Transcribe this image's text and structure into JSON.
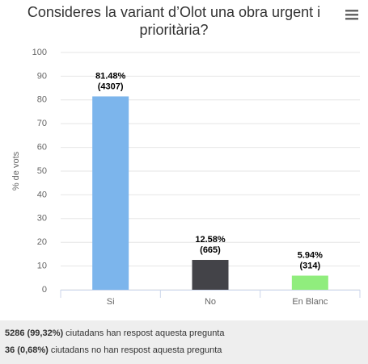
{
  "chart_data": {
    "type": "bar",
    "title": "Consideres la variant d’Olot una obra urgent i prioritària?",
    "y_label": "% de vots",
    "categories": [
      "Si",
      "No",
      "En Blanc"
    ],
    "values": [
      81.48,
      12.58,
      5.94
    ],
    "value_labels": [
      "81.48%",
      "12.58%",
      "5.94%"
    ],
    "count_labels": [
      "(4307)",
      "(665)",
      "(314)"
    ],
    "colors": [
      "#7cb5ec",
      "#434348",
      "#90ed7d"
    ],
    "ylim": [
      0,
      100
    ],
    "yticks": [
      0,
      10,
      20,
      30,
      40,
      50,
      60,
      70,
      80,
      90,
      100
    ],
    "grid": true
  },
  "footer": {
    "lines": [
      {
        "bold": "5286 (99,32%)",
        "text": "ciutadans han respost aquesta pregunta"
      },
      {
        "bold": "36 (0,68%)",
        "text": "ciutadans no han respost aquesta pregunta"
      }
    ]
  }
}
